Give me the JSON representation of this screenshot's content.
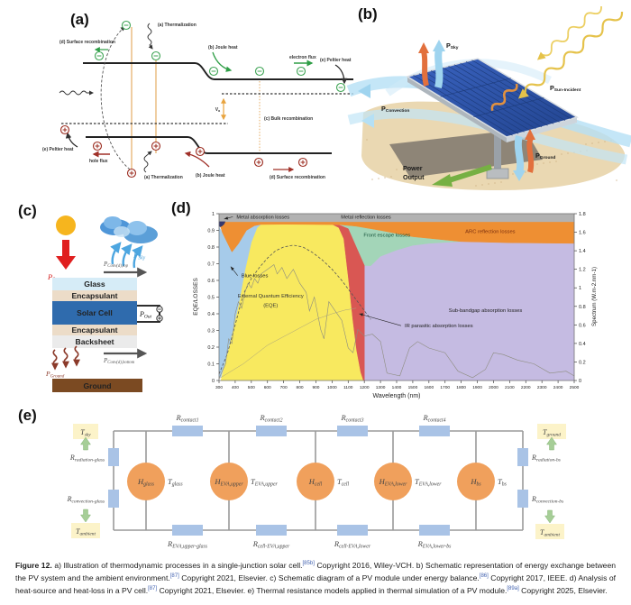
{
  "panels": {
    "a": {
      "label": "(a)",
      "labels": {
        "surface_recomb_top": "(d) Surface recombination",
        "thermalization_top": "(a) Thermalization",
        "joule_top": "(b) Joule heat",
        "electron_flux": "electron flux",
        "peltier_top_right": "(e) Peltier heat",
        "bulk_recomb": "(c) Bulk recombination",
        "voltage": "V_a",
        "peltier_bottom_left": "(e) Peltier heat",
        "hole_flux": "hole flux",
        "thermalization_bottom": "(a) Thermalization",
        "joule_bottom": "(b) Joule heat",
        "surface_recomb_bottom": "(d) Surface recombination"
      }
    },
    "b": {
      "label": "(b)",
      "labels": {
        "p_sky": "P_Sky",
        "p_sun_incident": "P_Sun-Incident",
        "p_convection": "P_Convection",
        "p_ground": "P_Ground",
        "power_line1": "Power",
        "power_line2": "Output"
      }
    },
    "c": {
      "label": "(c)",
      "labels": {
        "p_sun": "P_Sun",
        "p_sky": "P_Sky",
        "p_conv_top": "P_Conv(d),top",
        "p_out": "P_Out",
        "p_conv_bottom": "P_Conv(d),bottom",
        "p_ground": "P_Ground",
        "ground": "Ground"
      },
      "layers": [
        "Glass",
        "Encapsulant",
        "Solar Cell",
        "Encapsulant",
        "Backsheet"
      ]
    },
    "d": {
      "label": "(d)"
    },
    "e": {
      "label": "(e)",
      "left": {
        "t_sky": "T_sky",
        "r_radiation": "R_radiation-glass",
        "r_convection": "R_convection-glass",
        "t_ambient": "T_ambient"
      },
      "right": {
        "t_ground": "T_ground",
        "r_radiation": "R_radiation-bs",
        "r_convection": "R_convection-bs",
        "t_ambient": "T_ambient"
      },
      "top_resistors": [
        "R_contact1",
        "R_contact2",
        "R_contact3",
        "R_contact4"
      ],
      "bottom_resistors": [
        "R_EVA,upper-glass",
        "R_cell-EVA,upper",
        "R_cell-EVA,lower",
        "R_EVA,lower-bs"
      ],
      "heat_nodes": [
        "H_glass",
        "H_EVA,upper",
        "H_cell",
        "H_EVA,lower",
        "H_bs"
      ],
      "temp_nodes": [
        "T_glass",
        "T_EVA,upper",
        "T_cell",
        "T_EVA,lower",
        "T_bs"
      ]
    }
  },
  "chart_data": {
    "type": "area",
    "xlabel": "Wavelength (nm)",
    "ylabel_left": "EQE/LOSSES",
    "ylabel_right": "Spectrum (W.m-2.nm-1)",
    "x_range": [
      300,
      2500
    ],
    "x_tick_step": 100,
    "y_left_range": [
      0,
      1
    ],
    "y_left_tick_step": 0.1,
    "y_right_range": [
      0,
      1.8
    ],
    "y_right_tick_step": 0.2,
    "regions": [
      {
        "name": "sub-bandgap-absorption-losses",
        "color": "#c5bbe2",
        "points": [
          [
            1200,
            0.69
          ],
          [
            1240,
            0.688
          ],
          [
            1300,
            0.745
          ],
          [
            1400,
            0.782
          ],
          [
            1500,
            0.81
          ],
          [
            1600,
            0.822
          ],
          [
            1700,
            0.828
          ],
          [
            1800,
            0.833
          ],
          [
            2100,
            0.826
          ],
          [
            2500,
            0.822
          ],
          [
            2500,
            0
          ],
          [
            1200,
            0
          ]
        ]
      },
      {
        "name": "front-escape-losses",
        "color": "#a3d5b8",
        "points": [
          [
            1050,
            0.934
          ],
          [
            1150,
            0.925
          ],
          [
            1300,
            0.9
          ],
          [
            1500,
            0.862
          ],
          [
            1800,
            0.833
          ],
          [
            1700,
            0.828
          ],
          [
            1600,
            0.822
          ],
          [
            1500,
            0.81
          ],
          [
            1400,
            0.782
          ],
          [
            1300,
            0.745
          ],
          [
            1240,
            0.688
          ],
          [
            1200,
            0.69
          ],
          [
            1150,
            0.8
          ],
          [
            1100,
            0.91
          ]
        ]
      },
      {
        "name": "ir-parasitic-absorption-losses",
        "color": "#d95753",
        "points": [
          [
            1000,
            0.934
          ],
          [
            1050,
            0.93
          ],
          [
            1100,
            0.91
          ],
          [
            1150,
            0.8
          ],
          [
            1200,
            0.69
          ],
          [
            1200,
            0
          ],
          [
            1192,
            0
          ],
          [
            1175,
            0.05
          ],
          [
            1150,
            0.18
          ],
          [
            1125,
            0.37
          ],
          [
            1100,
            0.6
          ],
          [
            1070,
            0.85
          ],
          [
            1040,
            0.915
          ]
        ]
      },
      {
        "name": "external-quantum-efficiency",
        "color": "#f8e95f",
        "points": [
          [
            312,
            0
          ],
          [
            340,
            0.12
          ],
          [
            380,
            0.28
          ],
          [
            420,
            0.45
          ],
          [
            460,
            0.66
          ],
          [
            500,
            0.83
          ],
          [
            535,
            0.915
          ],
          [
            558,
            0.935
          ],
          [
            700,
            0.94
          ],
          [
            900,
            0.94
          ],
          [
            1000,
            0.934
          ],
          [
            1040,
            0.915
          ],
          [
            1070,
            0.85
          ],
          [
            1100,
            0.6
          ],
          [
            1125,
            0.37
          ],
          [
            1150,
            0.18
          ],
          [
            1175,
            0.05
          ],
          [
            1192,
            0
          ]
        ]
      },
      {
        "name": "blue-losses",
        "color": "#a6cbea",
        "points": [
          [
            300,
            0.92
          ],
          [
            320,
            0.888
          ],
          [
            350,
            0.828
          ],
          [
            380,
            0.77
          ],
          [
            420,
            0.82
          ],
          [
            470,
            0.9
          ],
          [
            520,
            0.928
          ],
          [
            558,
            0.935
          ],
          [
            535,
            0.915
          ],
          [
            500,
            0.83
          ],
          [
            460,
            0.66
          ],
          [
            420,
            0.45
          ],
          [
            380,
            0.28
          ],
          [
            340,
            0.12
          ],
          [
            312,
            0.02
          ],
          [
            300,
            0.02
          ]
        ]
      },
      {
        "name": "arc-reflection-losses",
        "color": "#ee8f33",
        "points": [
          [
            300,
            0.952
          ],
          [
            2500,
            0.952
          ],
          [
            2500,
            0.822
          ],
          [
            2100,
            0.826
          ],
          [
            1800,
            0.833
          ],
          [
            1500,
            0.862
          ],
          [
            1300,
            0.9
          ],
          [
            1150,
            0.925
          ],
          [
            1050,
            0.934
          ],
          [
            700,
            0.937
          ],
          [
            558,
            0.935
          ],
          [
            520,
            0.928
          ],
          [
            470,
            0.9
          ],
          [
            420,
            0.82
          ],
          [
            380,
            0.77
          ],
          [
            350,
            0.828
          ],
          [
            320,
            0.888
          ]
        ]
      },
      {
        "name": "metal-reflection-losses-band",
        "color": "#b2b2b2",
        "points": [
          [
            300,
            1
          ],
          [
            2500,
            1
          ],
          [
            2500,
            0.952
          ],
          [
            300,
            0.952
          ]
        ]
      },
      {
        "name": "metal-absorption-blob",
        "color": "#35386e",
        "points": [
          [
            300,
            0.952
          ],
          [
            338,
            0.952
          ],
          [
            330,
            0.936
          ],
          [
            318,
            0.926
          ],
          [
            306,
            0.921
          ],
          [
            300,
            0.926
          ]
        ]
      }
    ],
    "curves": [
      {
        "name": "solar-spectrum-smooth",
        "style": "dashed",
        "color": "#555555",
        "width": 0.8,
        "points": [
          [
            300,
            0.07
          ],
          [
            350,
            0.28
          ],
          [
            400,
            0.6
          ],
          [
            450,
            0.93
          ],
          [
            500,
            1.1
          ],
          [
            550,
            1.22
          ],
          [
            600,
            1.32
          ],
          [
            650,
            1.4
          ],
          [
            700,
            1.44
          ],
          [
            760,
            1.46
          ],
          [
            820,
            1.44
          ],
          [
            880,
            1.38
          ],
          [
            940,
            1.3
          ],
          [
            1000,
            1.2
          ],
          [
            1060,
            1.08
          ],
          [
            1120,
            0.94
          ],
          [
            1180,
            0.8
          ],
          [
            1240,
            0.66
          ]
        ]
      },
      {
        "name": "solar-spectrum-detail",
        "style": "solid",
        "color": "#8d8d7f",
        "width": 0.6,
        "points": [
          [
            300,
            0.02
          ],
          [
            340,
            0.18
          ],
          [
            360,
            0.45
          ],
          [
            380,
            0.4
          ],
          [
            400,
            0.72
          ],
          [
            420,
            0.85
          ],
          [
            440,
            0.78
          ],
          [
            460,
            0.95
          ],
          [
            480,
            1.05
          ],
          [
            500,
            1.0
          ],
          [
            520,
            1.1
          ],
          [
            540,
            1.05
          ],
          [
            560,
            1.15
          ],
          [
            600,
            1.2
          ],
          [
            640,
            1.25
          ],
          [
            660,
            1.15
          ],
          [
            690,
            1.22
          ],
          [
            720,
            1.1
          ],
          [
            760,
            1.2
          ],
          [
            800,
            1.05
          ],
          [
            840,
            0.95
          ],
          [
            860,
            0.75
          ],
          [
            890,
            0.9
          ],
          [
            930,
            0.55
          ],
          [
            950,
            0.45
          ],
          [
            980,
            0.85
          ],
          [
            1020,
            0.75
          ],
          [
            1060,
            0.65
          ],
          [
            1100,
            0.35
          ],
          [
            1130,
            0.3
          ],
          [
            1160,
            0.55
          ],
          [
            1200,
            0.48
          ],
          [
            1250,
            0.5
          ],
          [
            1300,
            0.42
          ],
          [
            1340,
            0.08
          ],
          [
            1420,
            0.05
          ],
          [
            1480,
            0.35
          ],
          [
            1530,
            0.42
          ],
          [
            1600,
            0.35
          ],
          [
            1700,
            0.3
          ],
          [
            1780,
            0.1
          ],
          [
            1870,
            0.03
          ],
          [
            1950,
            0.12
          ],
          [
            2000,
            0.3
          ],
          [
            2060,
            0.28
          ],
          [
            2150,
            0.22
          ],
          [
            2250,
            0.18
          ],
          [
            2350,
            0.08
          ],
          [
            2450,
            0.1
          ],
          [
            2500,
            0.05
          ]
        ]
      },
      {
        "name": "reference-curve",
        "style": "solid",
        "color": "#a9a27c",
        "width": 0.5,
        "points": [
          [
            300,
            0.02
          ],
          [
            450,
            0.18
          ],
          [
            600,
            0.38
          ],
          [
            750,
            0.52
          ],
          [
            900,
            0.66
          ],
          [
            1000,
            0.72
          ],
          [
            1080,
            0.76
          ],
          [
            1150,
            0.78
          ]
        ]
      }
    ],
    "annotations": [
      {
        "text": "Metal absorption losses",
        "x": 408,
        "y": 0.971,
        "anchor": "start",
        "size": 5.6,
        "color": "#222222",
        "arrow_to": [
          332,
          0.968
        ]
      },
      {
        "text": "Metal reflection losses",
        "x": 1210,
        "y": 0.971,
        "size": 5.6,
        "color": "#222222"
      },
      {
        "text": "ARC reflection losses",
        "x": 1980,
        "y": 0.884,
        "size": 5.8,
        "color": "#7a2e0e"
      },
      {
        "text": "Front escape losses",
        "x": 1340,
        "y": 0.861,
        "size": 5.8,
        "color": "#17543c"
      },
      {
        "text": "Blue losses",
        "x": 438,
        "y": 0.618,
        "anchor": "start",
        "size": 5.8,
        "color": "#222222",
        "arrow_to": [
          372,
          0.683
        ]
      },
      {
        "text": "External Quantum Efficiency",
        "x": 620,
        "y": 0.497,
        "size": 5.8,
        "color": "#333333"
      },
      {
        "text": "(EQE)",
        "x": 620,
        "y": 0.44,
        "size": 5.8,
        "color": "#333333"
      },
      {
        "text": "IR parasitic absorption losses",
        "x": 1450,
        "y": 0.318,
        "anchor": "start",
        "size": 5.8,
        "color": "#222222",
        "arrow_to": [
          1168,
          0.4
        ]
      },
      {
        "text": "Sub-bandgap absorption losses",
        "x": 1950,
        "y": 0.41,
        "size": 5.8,
        "color": "#222222"
      }
    ]
  },
  "caption": {
    "segments": [
      {
        "text": "Figure 12.",
        "style": "bold"
      },
      {
        "text": " a) Illustration of thermodynamic processes in a single-junction solar cell.",
        "style": "normal"
      },
      {
        "text": "[85b]",
        "style": "ref"
      },
      {
        "text": " Copyright 2016, Wiley-VCH. b) Schematic representation of energy exchange between the PV system and the ambient environment.",
        "style": "normal"
      },
      {
        "text": "[87]",
        "style": "ref"
      },
      {
        "text": " Copyright 2021, Elsevier. c) Schematic diagram of a PV module under energy balance.",
        "style": "normal"
      },
      {
        "text": "[86]",
        "style": "ref"
      },
      {
        "text": " Copyright 2017, IEEE. d) Analysis of heat-source and heat-loss in a PV cell.",
        "style": "normal"
      },
      {
        "text": "[87]",
        "style": "ref"
      },
      {
        "text": " Copyright 2021, Elsevier. e) Thermal resistance models applied in thermal simulation of a PV module.",
        "style": "normal"
      },
      {
        "text": "[89a]",
        "style": "ref"
      },
      {
        "text": " Copyright 2025, Elsevier.",
        "style": "normal"
      }
    ]
  }
}
